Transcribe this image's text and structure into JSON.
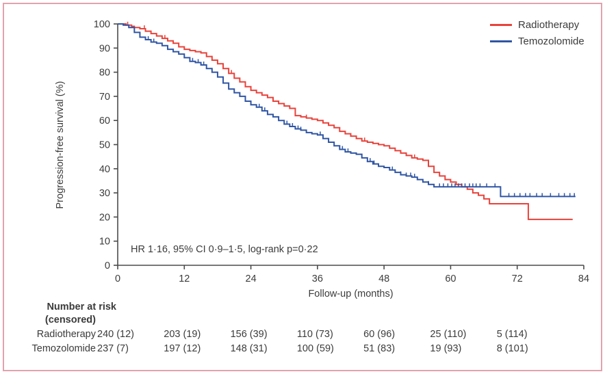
{
  "figure": {
    "border_color": "#e2a2ad",
    "background": "#ffffff",
    "axis_color": "#4a4a4a",
    "text_color": "#3b3b3b"
  },
  "chart_data": {
    "type": "line",
    "subtype": "kaplan-meier-step-survival",
    "title": "",
    "xlabel": "Follow-up (months)",
    "ylabel": "Progression-free survival (%)",
    "annotation": "HR 1·16, 95% CI 0·9–1·5, log-rank p=0·22",
    "xlim": [
      0,
      84
    ],
    "ylim": [
      0,
      100
    ],
    "xticks": [
      0,
      12,
      24,
      36,
      48,
      60,
      72,
      84
    ],
    "yticks": [
      0,
      10,
      20,
      30,
      40,
      50,
      60,
      70,
      80,
      90,
      100
    ],
    "grid": false,
    "legend_position": "top-right",
    "series": [
      {
        "name": "Radiotherapy",
        "color": "#e8423a",
        "points": [
          [
            0,
            100
          ],
          [
            1.5,
            99.5
          ],
          [
            2.5,
            99
          ],
          [
            3,
            98.5
          ],
          [
            4,
            98
          ],
          [
            5,
            97
          ],
          [
            6,
            96
          ],
          [
            7,
            95
          ],
          [
            8,
            94
          ],
          [
            9,
            93
          ],
          [
            10,
            92
          ],
          [
            11,
            90.5
          ],
          [
            12,
            89.5
          ],
          [
            13,
            89
          ],
          [
            14,
            88.5
          ],
          [
            15,
            88
          ],
          [
            16,
            86.5
          ],
          [
            17,
            85
          ],
          [
            18,
            83.5
          ],
          [
            19,
            81.5
          ],
          [
            20,
            79.5
          ],
          [
            21,
            77.5
          ],
          [
            22,
            76
          ],
          [
            23,
            74
          ],
          [
            24,
            72.5
          ],
          [
            25,
            71.5
          ],
          [
            26,
            70.5
          ],
          [
            27,
            69.5
          ],
          [
            28,
            68
          ],
          [
            29,
            67
          ],
          [
            30,
            66
          ],
          [
            31,
            65
          ],
          [
            32,
            62
          ],
          [
            33,
            61.5
          ],
          [
            34,
            61
          ],
          [
            35,
            60.5
          ],
          [
            36,
            60
          ],
          [
            37,
            59
          ],
          [
            38,
            58
          ],
          [
            39,
            57
          ],
          [
            40,
            55.5
          ],
          [
            41,
            54.5
          ],
          [
            42,
            53.5
          ],
          [
            43,
            52.5
          ],
          [
            44,
            51.5
          ],
          [
            45,
            51
          ],
          [
            46,
            50.5
          ],
          [
            47,
            50
          ],
          [
            48,
            49.5
          ],
          [
            49,
            48.5
          ],
          [
            50,
            47.5
          ],
          [
            51,
            46.5
          ],
          [
            52,
            45.5
          ],
          [
            53,
            44.5
          ],
          [
            54,
            44
          ],
          [
            55,
            43.5
          ],
          [
            56,
            41
          ],
          [
            57,
            38.5
          ],
          [
            58,
            37
          ],
          [
            59,
            35.5
          ],
          [
            60,
            34.5
          ],
          [
            61,
            33.5
          ],
          [
            62,
            32.5
          ],
          [
            63,
            31.5
          ],
          [
            64,
            30
          ],
          [
            65,
            29
          ],
          [
            66,
            27.5
          ],
          [
            67,
            25.5
          ],
          [
            74,
            19
          ],
          [
            82,
            19
          ]
        ],
        "censor_marks": [
          1.8,
          4.8,
          8.5,
          20.5,
          34,
          44.5,
          53.5
        ]
      },
      {
        "name": "Temozolomide",
        "color": "#2f55a4",
        "points": [
          [
            0,
            100
          ],
          [
            1,
            99.5
          ],
          [
            2,
            98.5
          ],
          [
            3,
            96.5
          ],
          [
            4,
            94.5
          ],
          [
            5,
            93.5
          ],
          [
            6,
            92.5
          ],
          [
            7,
            92
          ],
          [
            8,
            91
          ],
          [
            9,
            89.5
          ],
          [
            10,
            88.5
          ],
          [
            11,
            87.5
          ],
          [
            12,
            86
          ],
          [
            13,
            84.5
          ],
          [
            14,
            84
          ],
          [
            15,
            83
          ],
          [
            16,
            81.5
          ],
          [
            17,
            80
          ],
          [
            18,
            78
          ],
          [
            19,
            75.5
          ],
          [
            20,
            73
          ],
          [
            21,
            71.5
          ],
          [
            22,
            70
          ],
          [
            23,
            68
          ],
          [
            24,
            66.5
          ],
          [
            25,
            65.5
          ],
          [
            26,
            64
          ],
          [
            27,
            62.5
          ],
          [
            28,
            61.5
          ],
          [
            29,
            60
          ],
          [
            30,
            58.5
          ],
          [
            31,
            57.5
          ],
          [
            32,
            56.5
          ],
          [
            33,
            56
          ],
          [
            34,
            55
          ],
          [
            35,
            54.5
          ],
          [
            36,
            54
          ],
          [
            37,
            52.5
          ],
          [
            38,
            51
          ],
          [
            39,
            49.5
          ],
          [
            40,
            48
          ],
          [
            41,
            47
          ],
          [
            42,
            46.5
          ],
          [
            43,
            46
          ],
          [
            44,
            44.5
          ],
          [
            45,
            43
          ],
          [
            46,
            42
          ],
          [
            47,
            41
          ],
          [
            48,
            40.5
          ],
          [
            49,
            39.5
          ],
          [
            50,
            38.5
          ],
          [
            51,
            37.5
          ],
          [
            52,
            37
          ],
          [
            53,
            36.5
          ],
          [
            54,
            35.5
          ],
          [
            55,
            34.5
          ],
          [
            56,
            33.5
          ],
          [
            57,
            32.5
          ],
          [
            69,
            28.5
          ],
          [
            82.5,
            28.5
          ]
        ],
        "censor_marks": [
          5.5,
          6.5,
          13.5,
          14.5,
          15.5,
          21,
          22,
          25.5,
          26.5,
          30.5,
          31.5,
          32.5,
          33,
          36.5,
          40.5,
          41.5,
          44,
          45.5,
          46.2,
          49.5,
          51,
          52,
          52.8,
          53.5,
          56,
          58,
          58.7,
          59.5,
          60.2,
          60.8,
          61.4,
          62,
          62.6,
          63.4,
          64,
          64.6,
          65.3,
          66.5,
          68,
          70.5,
          71.5,
          72.5,
          73.5,
          74.3,
          75.5,
          76.5,
          78,
          79.5,
          80.5,
          81.5,
          82.3
        ]
      }
    ]
  },
  "risk_table": {
    "header_line1": "Number at risk",
    "header_line2": "(censored)",
    "time_points": [
      0,
      12,
      24,
      36,
      48,
      60,
      72
    ],
    "rows": [
      {
        "label": "Radiotherapy",
        "values": [
          "240 (12)",
          "203 (19)",
          "156 (39)",
          "110 (73)",
          "60 (96)",
          "25 (110)",
          "5 (114)"
        ]
      },
      {
        "label": "Temozolomide",
        "values": [
          "237 (7)",
          "197 (12)",
          "148 (31)",
          "100 (59)",
          "51 (83)",
          "19 (93)",
          "8 (101)"
        ]
      }
    ]
  }
}
